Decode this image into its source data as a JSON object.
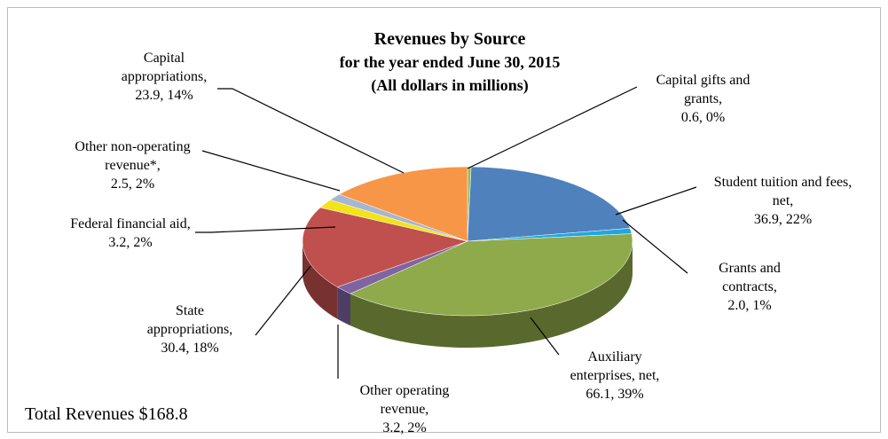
{
  "chart_data": {
    "type": "pie",
    "title": "Revenues by Source",
    "subtitle": "for the year ended June 30, 2015",
    "note": "(All dollars in millions)",
    "annotation": "Total Revenues $168.8",
    "categories": [
      "Capital gifts and grants,",
      "Student tuition and fees, net,",
      "Grants and contracts,",
      "Auxiliary enterprises, net,",
      "Other operating revenue,",
      "State appropriations,",
      "Federal financial aid,",
      "Other non-operating revenue*,",
      "Capital appropriations,"
    ],
    "values": [
      0.6,
      36.9,
      2.0,
      66.1,
      3.2,
      30.4,
      3.2,
      2.5,
      23.9
    ],
    "value_labels": [
      "0.6, 0%",
      "36.9, 22%",
      "2.0, 1%",
      "66.1, 39%",
      "3.2, 2%",
      "30.4, 18%",
      "3.2, 2%",
      "2.5, 2%",
      "23.9, 14%"
    ],
    "colors": [
      "#9bbb59",
      "#4f81bd",
      "#1fa7e0",
      "#8faa4a",
      "#8064a2",
      "#c0504d",
      "#f2e31c",
      "#a7b6d2",
      "#f79646"
    ]
  }
}
